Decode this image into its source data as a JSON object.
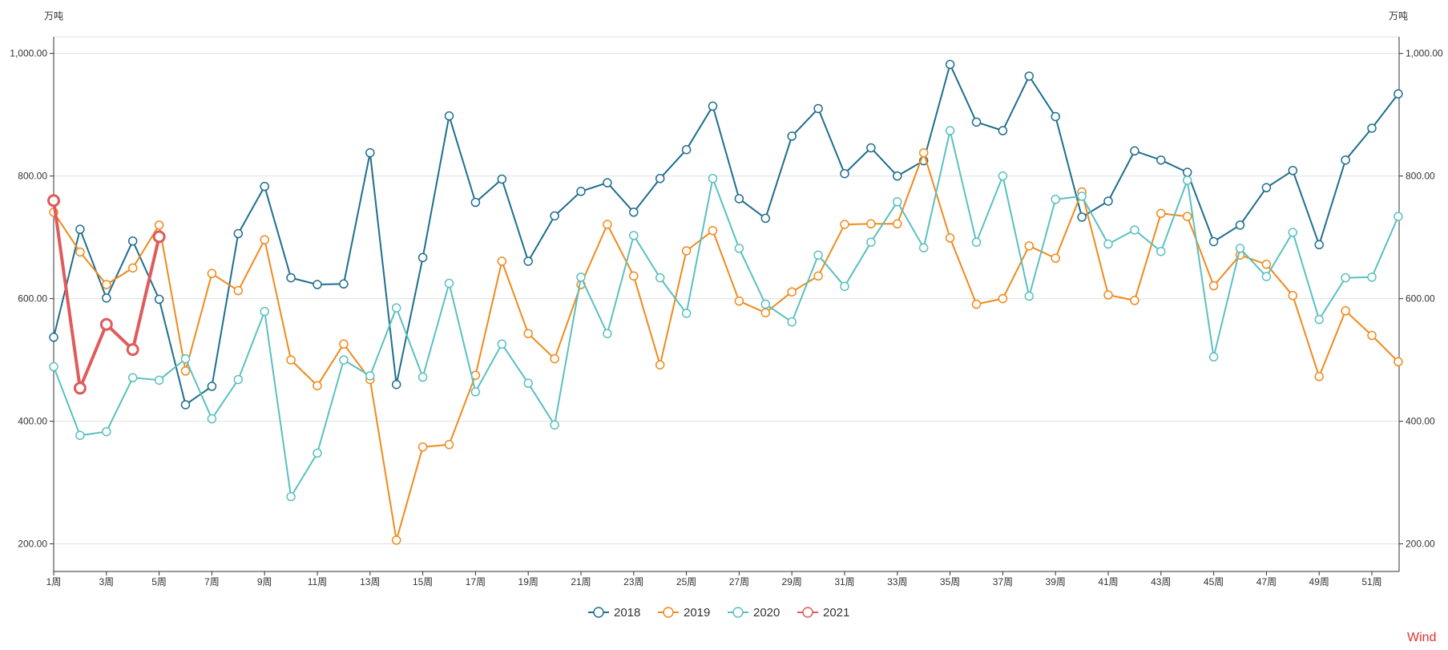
{
  "chart_data": {
    "type": "line",
    "title": "",
    "units": {
      "left": "万吨",
      "right": "万吨"
    },
    "watermark": "Wind",
    "ylim": [
      155,
      1027
    ],
    "yticks": [
      200,
      400,
      600,
      800,
      1000
    ],
    "ytick_labels": [
      "200.00",
      "400.00",
      "600.00",
      "800.00",
      "1,000.00"
    ],
    "x_tick_labels": [
      "1周",
      "3周",
      "5周",
      "7周",
      "9周",
      "11周",
      "13周",
      "15周",
      "17周",
      "19周",
      "21周",
      "23周",
      "25周",
      "27周",
      "29周",
      "31周",
      "33周",
      "35周",
      "37周",
      "39周",
      "41周",
      "43周",
      "45周",
      "47周",
      "49周",
      "51周"
    ],
    "x_tick_weeks": [
      1,
      3,
      5,
      7,
      9,
      11,
      13,
      15,
      17,
      19,
      21,
      23,
      25,
      27,
      29,
      31,
      33,
      35,
      37,
      39,
      41,
      43,
      45,
      47,
      49,
      51
    ],
    "weeks": 52,
    "series": [
      {
        "name": "2018",
        "color": "#1e6e8e",
        "values": [
          537,
          713,
          601,
          694,
          599,
          427,
          457,
          706,
          783,
          634,
          623,
          624,
          838,
          460,
          667,
          898,
          757,
          795,
          661,
          735,
          775,
          789,
          741,
          796,
          843,
          914,
          763,
          731,
          865,
          910,
          804,
          846,
          800,
          825,
          982,
          888,
          874,
          963,
          897,
          733,
          759,
          841,
          826,
          806,
          693,
          720,
          781,
          809,
          688,
          826,
          878,
          934
        ]
      },
      {
        "name": "2019",
        "color": "#f08a1c",
        "values": [
          741,
          676,
          623,
          650,
          720,
          482,
          641,
          613,
          696,
          500,
          458,
          526,
          468,
          206,
          358,
          362,
          475,
          661,
          543,
          502,
          623,
          721,
          637,
          492,
          678,
          711,
          596,
          577,
          611,
          637,
          721,
          722,
          722,
          838,
          699,
          591,
          600,
          686,
          666,
          774,
          606,
          597,
          739,
          734,
          621,
          671,
          656,
          605,
          473,
          580,
          540,
          497
        ]
      },
      {
        "name": "2020",
        "color": "#5bc0c0",
        "values": [
          489,
          377,
          383,
          471,
          467,
          502,
          404,
          468,
          579,
          277,
          348,
          500,
          474,
          585,
          472,
          625,
          448,
          526,
          462,
          394,
          635,
          543,
          703,
          634,
          576,
          796,
          682,
          591,
          562,
          671,
          620,
          692,
          758,
          683,
          874,
          692,
          800,
          604,
          762,
          767,
          689,
          712,
          677,
          793,
          505,
          682,
          636,
          708,
          566,
          634,
          635,
          734
        ]
      },
      {
        "name": "2021",
        "color": "#e05b5b",
        "values": [
          760,
          454,
          558,
          517,
          701
        ]
      }
    ]
  }
}
